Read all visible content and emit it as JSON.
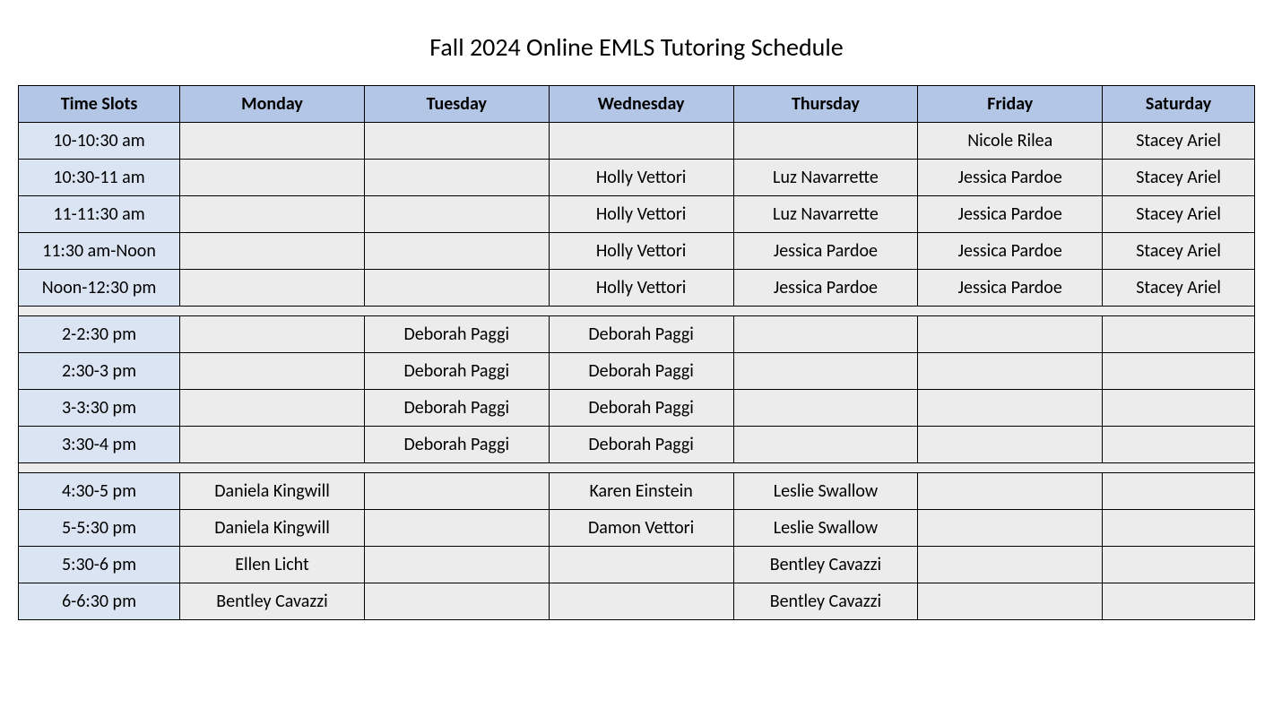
{
  "title": "Fall 2024 Online EMLS Tutoring Schedule",
  "columns": [
    "Time Slots",
    "Monday",
    "Tuesday",
    "Wednesday",
    "Thursday",
    "Friday",
    "Saturday"
  ],
  "styling": {
    "header_bg": "#b3c6e6",
    "timeslot_bg": "#dbe4f2",
    "cell_bg": "#ececec",
    "border_color": "#000000",
    "font_family": "Calibri",
    "title_fontsize": 28,
    "cell_fontsize": 20
  },
  "sections": [
    {
      "rows": [
        {
          "time": "10-10:30 am",
          "mon": "",
          "tue": "",
          "wed": "",
          "thu": "",
          "fri": "Nicole Rilea",
          "sat": "Stacey Ariel"
        },
        {
          "time": "10:30-11 am",
          "mon": "",
          "tue": "",
          "wed": "Holly Vettori",
          "thu": "Luz Navarrette",
          "fri": "Jessica Pardoe",
          "sat": "Stacey Ariel"
        },
        {
          "time": "11-11:30 am",
          "mon": "",
          "tue": "",
          "wed": "Holly Vettori",
          "thu": "Luz Navarrette",
          "fri": "Jessica Pardoe",
          "sat": "Stacey Ariel"
        },
        {
          "time": "11:30 am-Noon",
          "mon": "",
          "tue": "",
          "wed": "Holly Vettori",
          "thu": "Jessica Pardoe",
          "fri": "Jessica Pardoe",
          "sat": "Stacey Ariel"
        },
        {
          "time": "Noon-12:30 pm",
          "mon": "",
          "tue": "",
          "wed": "Holly Vettori",
          "thu": "Jessica Pardoe",
          "fri": "Jessica Pardoe",
          "sat": "Stacey Ariel"
        }
      ]
    },
    {
      "rows": [
        {
          "time": "2-2:30 pm",
          "mon": "",
          "tue": "Deborah Paggi",
          "wed": "Deborah Paggi",
          "thu": "",
          "fri": "",
          "sat": ""
        },
        {
          "time": "2:30-3 pm",
          "mon": "",
          "tue": "Deborah Paggi",
          "wed": "Deborah Paggi",
          "thu": "",
          "fri": "",
          "sat": ""
        },
        {
          "time": "3-3:30 pm",
          "mon": "",
          "tue": "Deborah Paggi",
          "wed": "Deborah Paggi",
          "thu": "",
          "fri": "",
          "sat": ""
        },
        {
          "time": "3:30-4 pm",
          "mon": "",
          "tue": "Deborah Paggi",
          "wed": "Deborah Paggi",
          "thu": "",
          "fri": "",
          "sat": ""
        }
      ]
    },
    {
      "rows": [
        {
          "time": "4:30-5 pm",
          "mon": "Daniela Kingwill",
          "tue": "",
          "wed": "Karen Einstein",
          "thu": "Leslie Swallow",
          "fri": "",
          "sat": ""
        },
        {
          "time": "5-5:30 pm",
          "mon": "Daniela Kingwill",
          "tue": "",
          "wed": "Damon Vettori",
          "thu": "Leslie Swallow",
          "fri": "",
          "sat": ""
        },
        {
          "time": "5:30-6 pm",
          "mon": "Ellen Licht",
          "tue": "",
          "wed": "",
          "thu": "Bentley Cavazzi",
          "fri": "",
          "sat": ""
        },
        {
          "time": "6-6:30 pm",
          "mon": "Bentley Cavazzi",
          "tue": "",
          "wed": "",
          "thu": "Bentley Cavazzi",
          "fri": "",
          "sat": ""
        }
      ]
    }
  ]
}
